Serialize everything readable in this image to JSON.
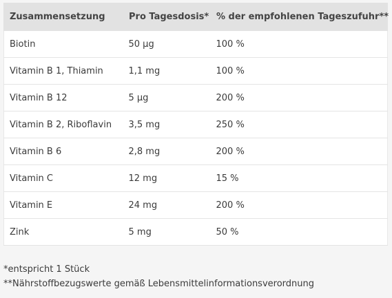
{
  "table": {
    "headers": [
      "Zusammensetzung",
      "Pro Tagesdosis*",
      "% der empfohlenen Tageszufuhr**"
    ],
    "rows": [
      [
        "Biotin",
        "50 µg",
        "100 %"
      ],
      [
        "Vitamin B 1, Thiamin",
        "1,1 mg",
        "100 %"
      ],
      [
        "Vitamin B 12",
        "5 µg",
        "200 %"
      ],
      [
        "Vitamin B 2, Riboflavin",
        "3,5 mg",
        "250 %"
      ],
      [
        "Vitamin B 6",
        "2,8 mg",
        "200 %"
      ],
      [
        "Vitamin C",
        "12 mg",
        "15 %"
      ],
      [
        "Vitamin E",
        "24 mg",
        "200 %"
      ],
      [
        "Zink",
        "5 mg",
        "50 %"
      ]
    ]
  },
  "footnotes": [
    "*entspricht 1 Stück",
    "**Nährstoffbezugswerte gemäß Lebensmittelinformationsverordnung"
  ]
}
